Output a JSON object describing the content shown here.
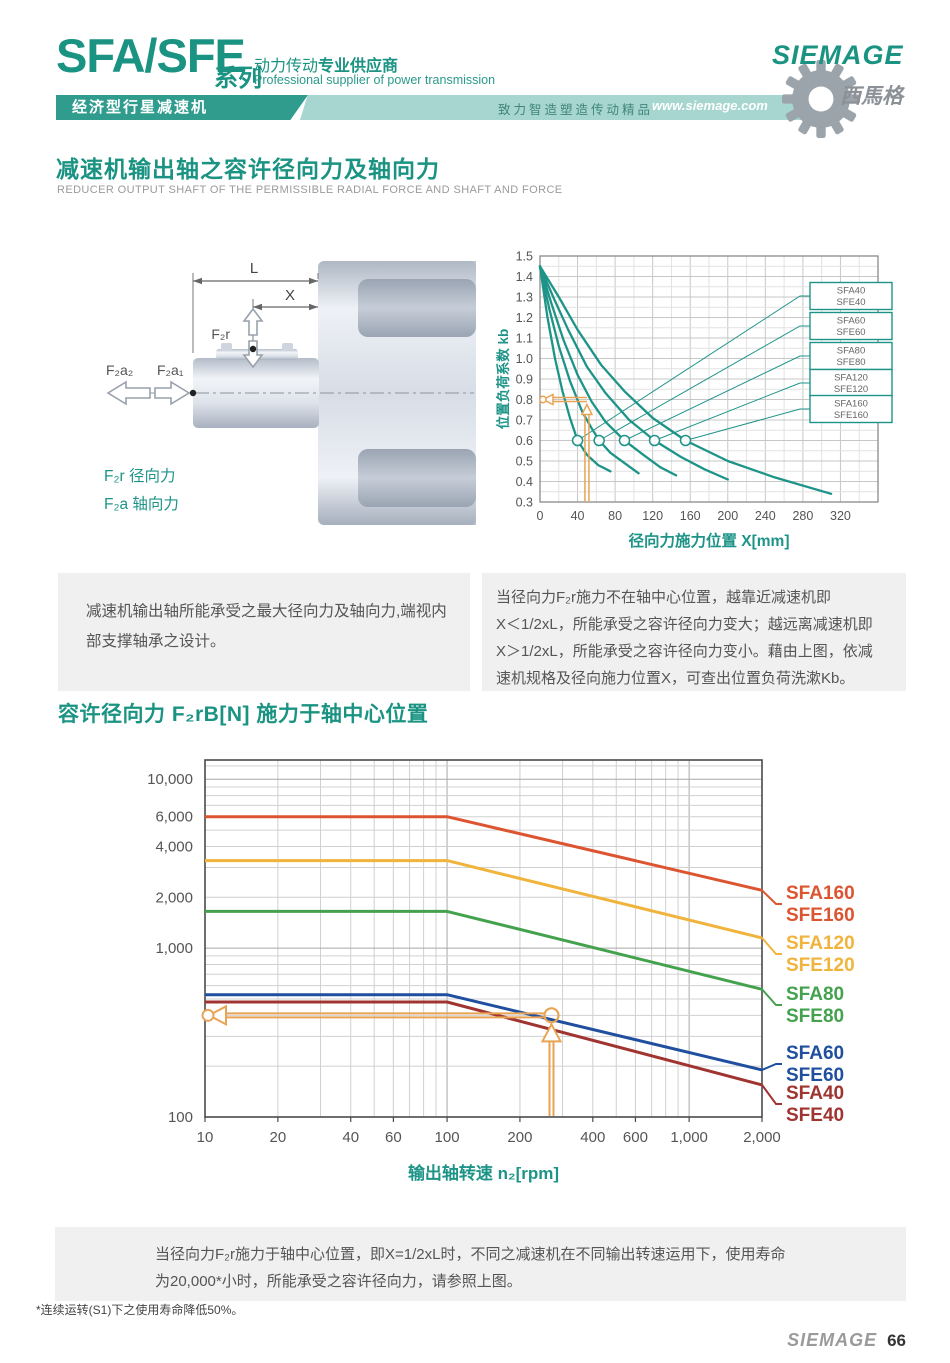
{
  "header": {
    "series": "SFA/SFE",
    "series_suffix": "系列",
    "tagline_cn_a": "动力传动",
    "tagline_cn_b": "专业供应商",
    "tagline_en": "Professional supplier of power transmission",
    "banner_product_line": "经济型行星减速机",
    "banner_slogan": "致力智造塑造传动精品",
    "banner_url": "www.siemage.com",
    "brand": "SIEMAGE",
    "brand_cn": "西馬格"
  },
  "section1": {
    "title_cn": "减速机输出轴之容许径向力及轴向力",
    "title_en": "REDUCER OUTPUT SHAFT OF THE PERMISSIBLE RADIAL FORCE AND SHAFT AND FORCE"
  },
  "diagram": {
    "dim_l": "L",
    "dim_x": "X",
    "f2r": "F₂r",
    "f2a2": "F₂a₂",
    "f2a1": "F₂a₁",
    "legend_radial": "F₂r 径向力",
    "legend_axial": "F₂a 轴向力"
  },
  "notes": {
    "left": [
      "减速机输出轴所能承受之最大径向力及轴向力,端视内",
      "部支撑轴承之设计。"
    ],
    "right": [
      "当径向力F₂r施力不在轴中心位置，越靠近减速机即",
      "X＜1/2xL，所能承受之容许径向力变大；越远离减速机即",
      "X＞1/2xL，所能承受之容许径向力变小。藉由上图，依减",
      "速机规格及径向施力位置X，可查出位置负荷洗漱Kb。"
    ],
    "bottom": [
      "当径向力F₂r施力于轴中心位置，即X=1/2xL时，不同之减速机在不同输出转速运用下，使用寿命",
      "为20,000*小时，所能承受之容许径向力，请参照上图。"
    ]
  },
  "section2_title": "容许径向力 F₂rB[N] 施力于轴中心位置",
  "footnote": "*连续运转(S1)下之使用寿命降低50%。",
  "footer": {
    "brand": "SIEMAGE",
    "page": "66"
  },
  "colors": {
    "accent_teal": "#1e9488",
    "banner_light": "#a6d6cf",
    "annotation_orange": "#e8a355"
  },
  "chart_data": [
    {
      "type": "line",
      "xlabel": "径向力施力位置 X[mm]",
      "ylabel": "位置负荷系数 kb",
      "xlim": [
        0,
        360
      ],
      "ylim": [
        0.3,
        1.5
      ],
      "x_ticks": [
        0,
        40,
        80,
        120,
        160,
        200,
        240,
        280,
        320
      ],
      "y_ticks": [
        0.3,
        0.4,
        0.5,
        0.6,
        0.7,
        0.8,
        0.9,
        1.0,
        1.1,
        1.2,
        1.3,
        1.4,
        1.5
      ],
      "grid": true,
      "line_color": "#1e9488",
      "legend_position": "right-inside-boxes",
      "legend": [
        [
          "SFA40",
          "SFE40"
        ],
        [
          "SFA60",
          "SFE60"
        ],
        [
          "SFA80",
          "SFE80"
        ],
        [
          "SFA120",
          "SFE120"
        ],
        [
          "SFA160",
          "SFE160"
        ]
      ],
      "series": [
        {
          "name": "SFA40/SFE40",
          "points": [
            [
              0,
              1.45
            ],
            [
              8,
              1.2
            ],
            [
              16,
              1.0
            ],
            [
              24,
              0.84
            ],
            [
              32,
              0.71
            ],
            [
              40,
              0.6
            ],
            [
              50,
              0.53
            ],
            [
              62,
              0.48
            ],
            [
              75,
              0.45
            ]
          ]
        },
        {
          "name": "SFA60/SFE60",
          "points": [
            [
              0,
              1.45
            ],
            [
              10,
              1.24
            ],
            [
              20,
              1.06
            ],
            [
              32,
              0.89
            ],
            [
              45,
              0.74
            ],
            [
              55,
              0.66
            ],
            [
              63,
              0.6
            ],
            [
              75,
              0.54
            ],
            [
              90,
              0.49
            ],
            [
              105,
              0.44
            ]
          ]
        },
        {
          "name": "SFA80/SFE80",
          "points": [
            [
              0,
              1.45
            ],
            [
              12,
              1.27
            ],
            [
              25,
              1.09
            ],
            [
              40,
              0.92
            ],
            [
              55,
              0.79
            ],
            [
              70,
              0.69
            ],
            [
              90,
              0.6
            ],
            [
              110,
              0.53
            ],
            [
              128,
              0.47
            ],
            [
              145,
              0.43
            ]
          ]
        },
        {
          "name": "SFA120/SFE120",
          "points": [
            [
              0,
              1.45
            ],
            [
              15,
              1.29
            ],
            [
              30,
              1.14
            ],
            [
              50,
              0.96
            ],
            [
              70,
              0.83
            ],
            [
              95,
              0.7
            ],
            [
              122,
              0.6
            ],
            [
              150,
              0.52
            ],
            [
              175,
              0.46
            ],
            [
              200,
              0.41
            ]
          ]
        },
        {
          "name": "SFA160/SFE160",
          "points": [
            [
              0,
              1.45
            ],
            [
              20,
              1.3
            ],
            [
              40,
              1.14
            ],
            [
              65,
              0.97
            ],
            [
              90,
              0.84
            ],
            [
              120,
              0.71
            ],
            [
              155,
              0.6
            ],
            [
              200,
              0.5
            ],
            [
              250,
              0.42
            ],
            [
              310,
              0.34
            ]
          ]
        }
      ],
      "markers_at_kb": [
        [
          40,
          0.6
        ],
        [
          63,
          0.6
        ],
        [
          90,
          0.6
        ],
        [
          122,
          0.6
        ],
        [
          155,
          0.6
        ]
      ],
      "annotation": {
        "x_mm": 50,
        "kb": 0.8
      }
    },
    {
      "type": "line",
      "xscale": "log",
      "yscale": "log",
      "xlabel": "输出轴转速 n₂[rpm]",
      "ylabel": "",
      "xlim": [
        10,
        2000
      ],
      "ylim": [
        100,
        13000
      ],
      "x_ticks": [
        10,
        20,
        40,
        60,
        100,
        200,
        400,
        600,
        1000,
        2000
      ],
      "y_tick_labels": [
        10000,
        6000,
        4000,
        2000,
        1000,
        100
      ],
      "grid": true,
      "series": [
        {
          "label": [
            "SFA160",
            "SFE160"
          ],
          "color": "#dd5430",
          "points": [
            [
              10,
              6000
            ],
            [
              100,
              6000
            ],
            [
              2000,
              2200
            ]
          ]
        },
        {
          "label": [
            "SFA120",
            "SFE120"
          ],
          "color": "#f0b43c",
          "points": [
            [
              10,
              3300
            ],
            [
              100,
              3300
            ],
            [
              2000,
              1150
            ]
          ]
        },
        {
          "label": [
            "SFA80",
            "SFE80"
          ],
          "color": "#44a24e",
          "points": [
            [
              10,
              1650
            ],
            [
              100,
              1650
            ],
            [
              2000,
              570
            ]
          ]
        },
        {
          "label": [
            "SFA60",
            "SFE60"
          ],
          "color": "#1f4f9e",
          "points": [
            [
              10,
              530
            ],
            [
              100,
              530
            ],
            [
              2000,
              190
            ]
          ]
        },
        {
          "label": [
            "SFA40",
            "SFE40"
          ],
          "color": "#a03431",
          "points": [
            [
              10,
              480
            ],
            [
              100,
              480
            ],
            [
              2000,
              155
            ]
          ]
        }
      ],
      "annotation": {
        "n2_rpm": 270,
        "force_n": 400
      }
    }
  ]
}
